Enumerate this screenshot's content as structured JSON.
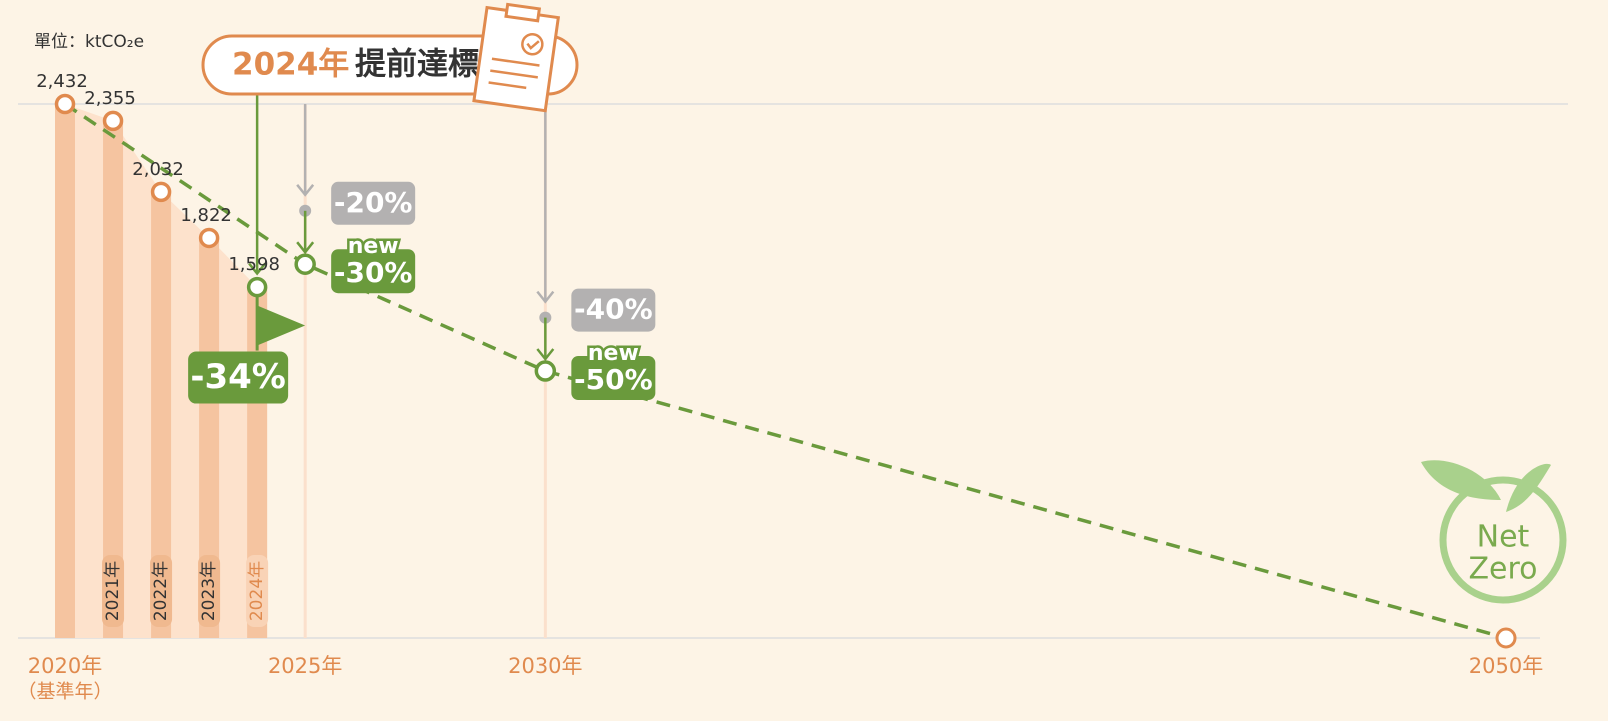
{
  "unit_label": "單位：ktCO₂e",
  "banner": {
    "year": "2024年",
    "text": "提前達標"
  },
  "chart_data": {
    "type": "line",
    "x": [
      2020,
      2021,
      2022,
      2023,
      2024
    ],
    "values": [
      2432,
      2355,
      2032,
      1822,
      1598
    ],
    "value_labels": [
      "2,432",
      "2,355",
      "2,032",
      "1,822",
      "1,598"
    ],
    "bar_labels": [
      null,
      "2021年",
      "2022年",
      "2023年",
      "2024年"
    ],
    "xlim": [
      2020,
      2050
    ],
    "ylim": [
      0,
      2432
    ],
    "xticks": [
      {
        "value": 2020,
        "label": "2020年"
      },
      {
        "value": 2025,
        "label": "2025年"
      },
      {
        "value": 2030,
        "label": "2030年"
      },
      {
        "value": 2050,
        "label": "2050年"
      }
    ],
    "base_note": "（基準年）",
    "targets": {
      "x": [
        2025,
        2030
      ],
      "old": [
        -20,
        -40
      ],
      "old_labels": [
        "-20%",
        "-40%"
      ],
      "new": [
        -30,
        -50
      ],
      "new_labels": [
        "-30%",
        "-50%"
      ],
      "new_tag": "new"
    },
    "achieved": {
      "x": 2024,
      "value": -34,
      "label": "-34%"
    },
    "goal": {
      "x": 2050,
      "value": 0,
      "labels": [
        "Net",
        "Zero"
      ]
    },
    "colors": {
      "data": "#e08a4e",
      "bar": "#f5c4a0",
      "area": "#fde2cc",
      "target": "#6a9a3c",
      "old": "#b3b1b1",
      "goal": "#a9d18c"
    }
  }
}
